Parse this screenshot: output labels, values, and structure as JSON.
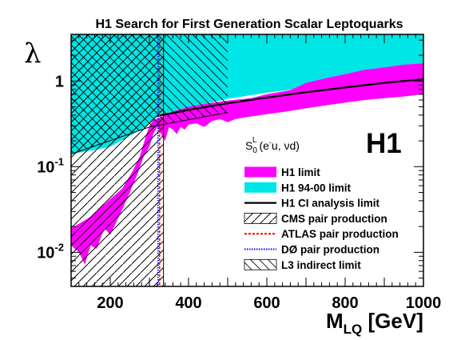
{
  "chart_data": {
    "type": "area",
    "title": "H1 Search for First Generation Scalar Leptoquarks",
    "xlabel": {
      "main": "M",
      "sub": "LQ",
      "unit": " [GeV]"
    },
    "ylabel": "λ",
    "xlim": [
      100,
      1000
    ],
    "ylim": [
      0.004,
      3.5
    ],
    "yscale": "log",
    "xticks": [
      200,
      400,
      600,
      800,
      1000
    ],
    "yticks": [
      {
        "value": 1,
        "label": "1"
      },
      {
        "value": 0.1,
        "base": "10",
        "exp": "-1"
      },
      {
        "value": 0.01,
        "base": "10",
        "exp": "-2"
      }
    ],
    "grid": false,
    "legend_position": "bottom-right",
    "annotations": {
      "experiment": "H1",
      "process": {
        "s": "S",
        "sub": "0",
        "sup": "L",
        "args": "(e",
        "em": "-",
        "rest": "u, νd)"
      }
    },
    "series": [
      {
        "name": "H1 94-00 limit",
        "kind": "filled",
        "color": "#00e5e5",
        "lower": [
          [
            100,
            0.14
          ],
          [
            200,
            0.17
          ],
          [
            290,
            0.29
          ],
          [
            320,
            0.38
          ],
          [
            400,
            0.49
          ],
          [
            500,
            0.62
          ],
          [
            600,
            0.73
          ],
          [
            700,
            0.83
          ],
          [
            800,
            0.92
          ],
          [
            900,
            0.99
          ],
          [
            1000,
            1.05
          ]
        ]
      },
      {
        "name": "H1 limit",
        "kind": "band",
        "color": "#ff00ff",
        "upper": [
          [
            100,
            0.019
          ],
          [
            150,
            0.026
          ],
          [
            200,
            0.042
          ],
          [
            230,
            0.055
          ],
          [
            255,
            0.085
          ],
          [
            275,
            0.13
          ],
          [
            290,
            0.22
          ],
          [
            300,
            0.3
          ],
          [
            310,
            0.35
          ],
          [
            330,
            0.38
          ],
          [
            360,
            0.44
          ],
          [
            400,
            0.5
          ],
          [
            450,
            0.55
          ],
          [
            500,
            0.59
          ],
          [
            560,
            0.63
          ],
          [
            600,
            0.7
          ],
          [
            660,
            0.78
          ],
          [
            700,
            0.95
          ],
          [
            760,
            1.1
          ],
          [
            800,
            1.2
          ],
          [
            850,
            1.35
          ],
          [
            880,
            1.4
          ],
          [
            950,
            1.55
          ],
          [
            1000,
            1.6
          ]
        ],
        "lower": [
          [
            100,
            0.012
          ],
          [
            120,
            0.01
          ],
          [
            135,
            0.0072
          ],
          [
            150,
            0.012
          ],
          [
            165,
            0.011
          ],
          [
            185,
            0.019
          ],
          [
            200,
            0.016
          ],
          [
            225,
            0.028
          ],
          [
            250,
            0.05
          ],
          [
            270,
            0.083
          ],
          [
            285,
            0.13
          ],
          [
            300,
            0.17
          ],
          [
            310,
            0.24
          ],
          [
            320,
            0.29
          ],
          [
            330,
            0.24
          ],
          [
            340,
            0.2
          ],
          [
            350,
            0.29
          ],
          [
            360,
            0.27
          ],
          [
            370,
            0.24
          ],
          [
            380,
            0.29
          ],
          [
            390,
            0.27
          ],
          [
            400,
            0.31
          ],
          [
            420,
            0.32
          ],
          [
            440,
            0.29
          ],
          [
            460,
            0.34
          ],
          [
            480,
            0.36
          ],
          [
            500,
            0.33
          ],
          [
            520,
            0.36
          ],
          [
            550,
            0.38
          ],
          [
            600,
            0.41
          ],
          [
            650,
            0.44
          ],
          [
            700,
            0.48
          ],
          [
            750,
            0.52
          ],
          [
            800,
            0.56
          ],
          [
            850,
            0.6
          ],
          [
            900,
            0.63
          ],
          [
            950,
            0.66
          ],
          [
            1000,
            0.7
          ]
        ]
      },
      {
        "name": "H1 CI analysis limit",
        "kind": "line",
        "color": "#000000",
        "points": [
          [
            320,
            0.39
          ],
          [
            400,
            0.46
          ],
          [
            500,
            0.55
          ],
          [
            600,
            0.64
          ],
          [
            700,
            0.74
          ],
          [
            800,
            0.84
          ],
          [
            900,
            0.95
          ],
          [
            1000,
            1.05
          ]
        ]
      },
      {
        "name": "CMS pair production",
        "kind": "excluded_region",
        "x_max": 336
      },
      {
        "name": "ATLAS pair production",
        "kind": "vertical_line",
        "x": 326,
        "color": "#ff0000"
      },
      {
        "name": "DØ pair production",
        "kind": "vertical_line",
        "x": 322,
        "color": "#0000ff"
      },
      {
        "name": "L3 indirect limit",
        "kind": "excluded_region",
        "x_max": 500,
        "lower": [
          [
            100,
            0.14
          ],
          [
            300,
            0.29
          ],
          [
            500,
            0.43
          ]
        ]
      }
    ]
  }
}
